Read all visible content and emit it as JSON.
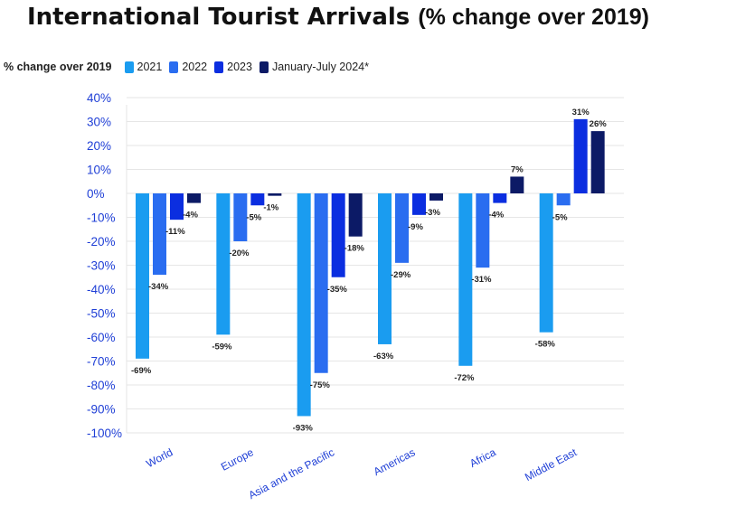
{
  "chart_data": {
    "type": "bar",
    "title_main": "International Tourist Arrivals",
    "title_paren": "(% change over 2019)",
    "legend_title": "% change over 2019",
    "legend_position": "top-left",
    "categories": [
      "World",
      "Europe",
      "Asia and the Pacific",
      "Americas",
      "Africa",
      "Middle East"
    ],
    "series": [
      {
        "name": "2021",
        "color": "#1a9cf0",
        "values": [
          -69,
          -59,
          -93,
          -63,
          -72,
          -58
        ]
      },
      {
        "name": "2022",
        "color": "#2a6df0",
        "values": [
          -34,
          -20,
          -75,
          -29,
          -31,
          -5
        ]
      },
      {
        "name": "2023",
        "color": "#0b2ee0",
        "values": [
          -11,
          -5,
          -35,
          -9,
          -4,
          31
        ]
      },
      {
        "name": "January-July 2024*",
        "color": "#0c1a66",
        "values": [
          -4,
          -1,
          -18,
          -3,
          7,
          26
        ]
      }
    ],
    "ylim": [
      -100,
      40
    ],
    "yticks": [
      40,
      30,
      20,
      10,
      0,
      -10,
      -20,
      -30,
      -40,
      -50,
      -60,
      -70,
      -80,
      -90,
      -100
    ],
    "ytick_labels": [
      "40%",
      "30%",
      "20%",
      "10%",
      "0%",
      "-10%",
      "-20%",
      "-30%",
      "-40%",
      "-50%",
      "-60%",
      "-70%",
      "-80%",
      "-90%",
      "-100%"
    ],
    "grid": true
  }
}
